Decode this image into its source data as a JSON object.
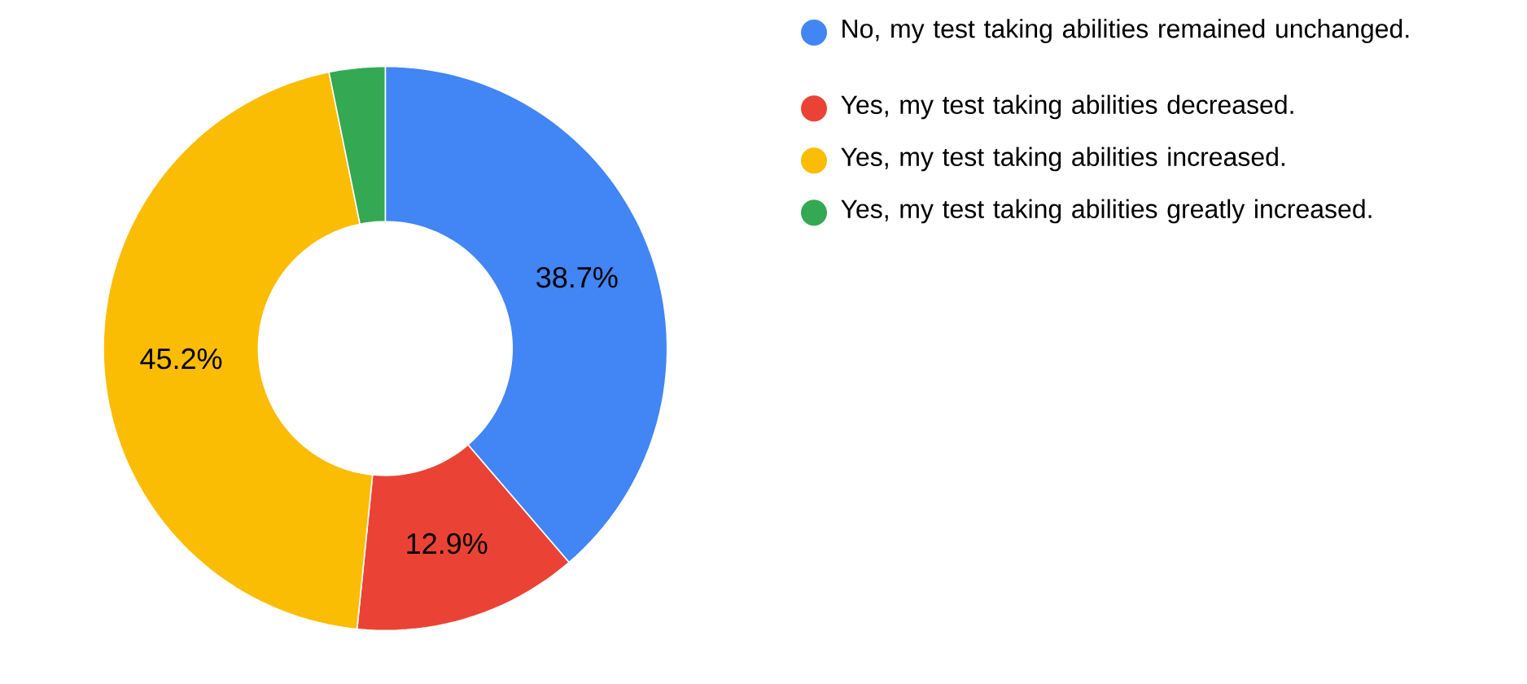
{
  "chart_data": {
    "type": "donut",
    "categories": [
      "No, my test taking abilities remained unchanged.",
      "Yes, my test taking abilities decreased.",
      "Yes, my test taking abilities increased.",
      "Yes, my test taking abilities greatly increased."
    ],
    "values": [
      38.7,
      12.9,
      45.2,
      3.2
    ],
    "colors": [
      "#4285f4",
      "#ea4335",
      "#fbbc04",
      "#34a853"
    ],
    "value_labels": [
      "38.7%",
      "12.9%",
      "45.2%",
      null
    ],
    "legend": "top right"
  }
}
